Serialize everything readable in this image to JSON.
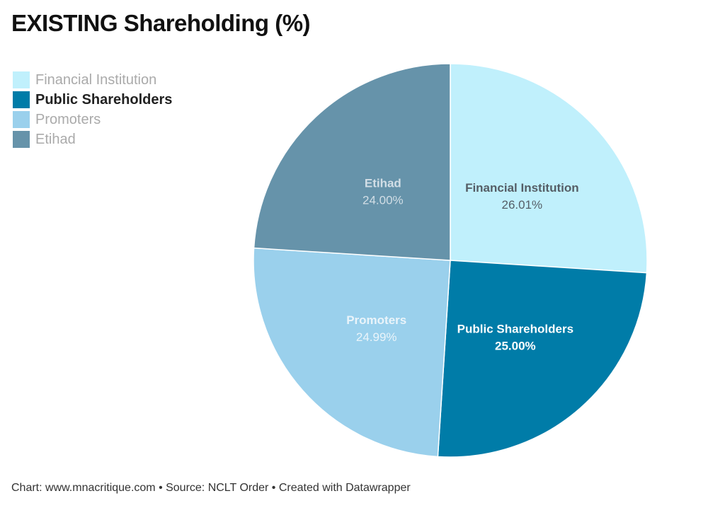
{
  "title": "EXISTING Shareholding (%)",
  "footer": "Chart: www.mnacritique.com • Source: NCLT Order • Created with Datawrapper",
  "chart_data": {
    "type": "pie",
    "title": "EXISTING Shareholding (%)",
    "legend_position": "top-left",
    "highlighted": "Public Shareholders",
    "slices": [
      {
        "label": "Financial Institution",
        "value": 26.01,
        "display": "26.01%",
        "color": "#c0f0fc",
        "text_color": "#555e66",
        "value_color": "#555e66"
      },
      {
        "label": "Public Shareholders",
        "value": 25.0,
        "display": "25.00%",
        "color": "#007ca8",
        "text_color": "#ffffff",
        "value_color": "#ffffff"
      },
      {
        "label": "Promoters",
        "value": 24.99,
        "display": "24.99%",
        "color": "#9ad0ec",
        "text_color": "#eaf4fa",
        "value_color": "#eaf4fa"
      },
      {
        "label": "Etihad",
        "value": 24.0,
        "display": "24.00%",
        "color": "#6693aa",
        "text_color": "#d2dee6",
        "value_color": "#d2dee6"
      }
    ]
  }
}
